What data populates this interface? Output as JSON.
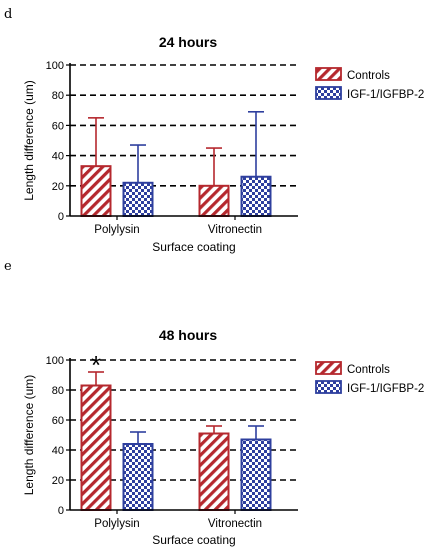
{
  "panels": [
    {
      "letter": "d"
    },
    {
      "letter": "e"
    }
  ],
  "chart_data": [
    {
      "type": "bar",
      "title": "24 hours",
      "xlabel": "Surface coating",
      "ylabel": "Length difference (um)",
      "ylim": [
        0,
        100
      ],
      "yticks": [
        "0",
        "20",
        "40",
        "60",
        "80",
        "100"
      ],
      "grid": "dashed horizontal",
      "legend_position": "right",
      "categories": [
        "Polylysin",
        "Vitronectin"
      ],
      "series": [
        {
          "name": "Controls",
          "color": "#b5282e",
          "pattern": "diagonal-hatch",
          "values": [
            33,
            20
          ],
          "error_upper": [
            65,
            45
          ]
        },
        {
          "name": "IGF-1/IGFBP-2",
          "color": "#2e3f9e",
          "pattern": "checker",
          "values": [
            22,
            26
          ],
          "error_upper": [
            47,
            69
          ]
        }
      ],
      "annotations": []
    },
    {
      "type": "bar",
      "title": "48 hours",
      "xlabel": "Surface coating",
      "ylabel": "Length difference (um)",
      "ylim": [
        0,
        100
      ],
      "yticks": [
        "0",
        "20",
        "40",
        "60",
        "80",
        "100"
      ],
      "grid": "dashed horizontal",
      "legend_position": "right",
      "categories": [
        "Polylysin",
        "Vitronectin"
      ],
      "series": [
        {
          "name": "Controls",
          "color": "#b5282e",
          "pattern": "diagonal-hatch",
          "values": [
            83,
            51
          ],
          "error_upper": [
            92,
            56
          ]
        },
        {
          "name": "IGF-1/IGFBP-2",
          "color": "#2e3f9e",
          "pattern": "checker",
          "values": [
            44,
            47
          ],
          "error_upper": [
            52,
            56
          ]
        }
      ],
      "annotations": [
        {
          "text": "*",
          "category": "Polylysin",
          "series": "Controls"
        }
      ]
    }
  ]
}
